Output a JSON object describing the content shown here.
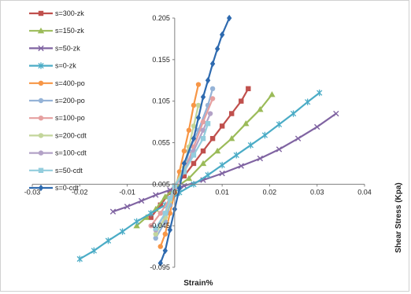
{
  "chart_data": {
    "type": "scatter",
    "title": "",
    "xlabel": "Strain%",
    "ylabel": "Shear Stress (Kpa)",
    "xlim": [
      -0.03,
      0.04
    ],
    "ylim": [
      -0.095,
      0.205
    ],
    "x_ticks": [
      -0.03,
      -0.02,
      -0.01,
      0,
      0.01,
      0.02,
      0.03,
      0.04
    ],
    "x_tick_labels": [
      "-0.03",
      "-0.02",
      "-0.01",
      "0",
      "0.01",
      "0.02",
      "0.03",
      "0.04"
    ],
    "y_ticks": [
      -0.095,
      -0.045,
      0.005,
      0.055,
      0.105,
      0.155,
      0.205
    ],
    "y_tick_labels": [
      "-0.095",
      "-0.045",
      "0.005",
      "0.055",
      "0.105",
      "0.155",
      "0.205"
    ],
    "grid": false,
    "legend_position": "top-left",
    "series": [
      {
        "name": "s=300-zk",
        "color": "#c0504d",
        "marker": "square",
        "points": [
          [
            -0.005,
            -0.035
          ],
          [
            -0.003,
            -0.02
          ],
          [
            -0.001,
            -0.005
          ],
          [
            0,
            0.003
          ],
          [
            0.002,
            0.015
          ],
          [
            0.004,
            0.03
          ],
          [
            0.006,
            0.045
          ],
          [
            0.008,
            0.06
          ],
          [
            0.01,
            0.075
          ],
          [
            0.012,
            0.09
          ],
          [
            0.014,
            0.105
          ],
          [
            0.0155,
            0.12
          ]
        ]
      },
      {
        "name": "s=150-zk",
        "color": "#9bbb59",
        "marker": "triangle",
        "points": [
          [
            -0.008,
            -0.045
          ],
          [
            -0.006,
            -0.035
          ],
          [
            -0.004,
            -0.025
          ],
          [
            -0.002,
            -0.01
          ],
          [
            0,
            0
          ],
          [
            0.003,
            0.012
          ],
          [
            0.006,
            0.03
          ],
          [
            0.009,
            0.045
          ],
          [
            0.012,
            0.06
          ],
          [
            0.015,
            0.078
          ],
          [
            0.018,
            0.095
          ],
          [
            0.0205,
            0.113
          ]
        ]
      },
      {
        "name": "s=50-zk",
        "color": "#8064a2",
        "marker": "x",
        "points": [
          [
            -0.013,
            -0.028
          ],
          [
            -0.01,
            -0.022
          ],
          [
            -0.007,
            -0.015
          ],
          [
            -0.004,
            -0.008
          ],
          [
            -0.001,
            -0.002
          ],
          [
            0.002,
            0.003
          ],
          [
            0.006,
            0.01
          ],
          [
            0.01,
            0.018
          ],
          [
            0.014,
            0.027
          ],
          [
            0.018,
            0.036
          ],
          [
            0.022,
            0.047
          ],
          [
            0.026,
            0.06
          ],
          [
            0.03,
            0.074
          ],
          [
            0.034,
            0.09
          ]
        ]
      },
      {
        "name": "s=0-zk",
        "color": "#4bacc6",
        "marker": "star",
        "points": [
          [
            -0.02,
            -0.085
          ],
          [
            -0.017,
            -0.075
          ],
          [
            -0.014,
            -0.063
          ],
          [
            -0.011,
            -0.052
          ],
          [
            -0.008,
            -0.04
          ],
          [
            -0.005,
            -0.03
          ],
          [
            -0.002,
            -0.02
          ],
          [
            0.001,
            -0.005
          ],
          [
            0.004,
            0.005
          ],
          [
            0.007,
            0.016
          ],
          [
            0.01,
            0.028
          ],
          [
            0.013,
            0.04
          ],
          [
            0.016,
            0.052
          ],
          [
            0.019,
            0.064
          ],
          [
            0.022,
            0.077
          ],
          [
            0.025,
            0.09
          ],
          [
            0.028,
            0.104
          ],
          [
            0.0305,
            0.115
          ]
        ]
      },
      {
        "name": "s=400-po",
        "color": "#f79646",
        "marker": "circle",
        "points": [
          [
            -0.003,
            -0.07
          ],
          [
            -0.002,
            -0.055
          ],
          [
            -0.001,
            -0.03
          ],
          [
            0,
            -0.005
          ],
          [
            0.001,
            0.02
          ],
          [
            0.002,
            0.045
          ],
          [
            0.003,
            0.07
          ],
          [
            0.004,
            0.1
          ],
          [
            0.005,
            0.125
          ]
        ]
      },
      {
        "name": "s=200-po",
        "color": "#95b3d7",
        "marker": "circle",
        "points": [
          [
            -0.004,
            -0.06
          ],
          [
            -0.002,
            -0.04
          ],
          [
            -0.001,
            -0.02
          ],
          [
            0,
            0
          ],
          [
            0.002,
            0.02
          ],
          [
            0.003,
            0.045
          ],
          [
            0.005,
            0.07
          ],
          [
            0.007,
            0.1
          ],
          [
            0.008,
            0.12
          ]
        ]
      },
      {
        "name": "s=100-po",
        "color": "#e6a0a0",
        "marker": "circle",
        "points": [
          [
            -0.005,
            -0.045
          ],
          [
            -0.003,
            -0.03
          ],
          [
            -0.001,
            -0.012
          ],
          [
            0,
            0
          ],
          [
            0.002,
            0.02
          ],
          [
            0.004,
            0.05
          ],
          [
            0.006,
            0.08
          ],
          [
            0.008,
            0.108
          ]
        ]
      },
      {
        "name": "s=200-cdt",
        "color": "#c3d69b",
        "marker": "circle",
        "points": [
          [
            -0.004,
            -0.055
          ],
          [
            -0.002,
            -0.035
          ],
          [
            -0.001,
            -0.015
          ],
          [
            0,
            0.003
          ],
          [
            0.002,
            0.025
          ],
          [
            0.003,
            0.05
          ],
          [
            0.004,
            0.075
          ],
          [
            0.005,
            0.1
          ]
        ]
      },
      {
        "name": "s=100-cdt",
        "color": "#b3a2c7",
        "marker": "circle",
        "points": [
          [
            -0.004,
            -0.05
          ],
          [
            -0.002,
            -0.03
          ],
          [
            -0.001,
            -0.012
          ],
          [
            0,
            0.002
          ],
          [
            0.002,
            0.02
          ],
          [
            0.004,
            0.045
          ],
          [
            0.006,
            0.07
          ],
          [
            0.0075,
            0.09
          ]
        ]
      },
      {
        "name": "s=50-cdt",
        "color": "#93cddd",
        "marker": "square",
        "points": [
          [
            -0.004,
            -0.048
          ],
          [
            -0.002,
            -0.03
          ],
          [
            -0.001,
            -0.012
          ],
          [
            0,
            0.003
          ],
          [
            0.002,
            0.02
          ],
          [
            0.004,
            0.04
          ],
          [
            0.006,
            0.06
          ],
          [
            0.007,
            0.078
          ]
        ]
      },
      {
        "name": "s=0-cdt",
        "color": "#2e6aaf",
        "marker": "diamond",
        "points": [
          [
            -0.003,
            -0.09
          ],
          [
            -0.002,
            -0.075
          ],
          [
            -0.001,
            -0.05
          ],
          [
            0,
            -0.025
          ],
          [
            0.001,
            0.0
          ],
          [
            0.002,
            0.03
          ],
          [
            0.004,
            0.06
          ],
          [
            0.005,
            0.085
          ],
          [
            0.006,
            0.11
          ],
          [
            0.007,
            0.13
          ],
          [
            0.008,
            0.15
          ],
          [
            0.009,
            0.168
          ],
          [
            0.01,
            0.185
          ],
          [
            0.0115,
            0.205
          ]
        ]
      }
    ]
  }
}
